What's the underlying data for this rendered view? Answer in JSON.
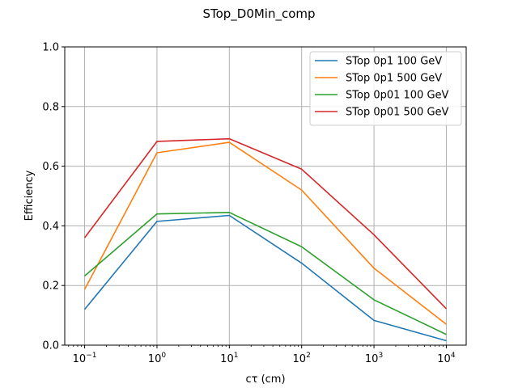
{
  "chart_data": {
    "type": "line",
    "title": "STop_D0Min_comp",
    "xlabel": "cτ (cm)",
    "ylabel": "Efficiency",
    "xscale": "log",
    "x": [
      0.1,
      1,
      10,
      100,
      1000,
      10000
    ],
    "x_ticks": [
      {
        "base": "10",
        "exp": "−1"
      },
      {
        "base": "10",
        "exp": "0"
      },
      {
        "base": "10",
        "exp": "1"
      },
      {
        "base": "10",
        "exp": "2"
      },
      {
        "base": "10",
        "exp": "3"
      },
      {
        "base": "10",
        "exp": "4"
      }
    ],
    "ylim": [
      0,
      1
    ],
    "y_ticks": [
      "0.0",
      "0.2",
      "0.4",
      "0.6",
      "0.8",
      "1.0"
    ],
    "grid": true,
    "legend_position": "top-right",
    "series": [
      {
        "name": "STop 0p1 100 GeV",
        "color": "#1f77b4",
        "values": [
          0.12,
          0.415,
          0.435,
          0.275,
          0.083,
          0.015
        ]
      },
      {
        "name": "STop 0p1 500 GeV",
        "color": "#ff7f0e",
        "values": [
          0.187,
          0.645,
          0.68,
          0.52,
          0.258,
          0.07
        ]
      },
      {
        "name": "STop 0p01 100 GeV",
        "color": "#2ca02c",
        "values": [
          0.232,
          0.44,
          0.445,
          0.33,
          0.152,
          0.036
        ]
      },
      {
        "name": "STop 0p01 500 GeV",
        "color": "#d62728",
        "values": [
          0.36,
          0.683,
          0.692,
          0.59,
          0.37,
          0.122
        ]
      }
    ]
  }
}
